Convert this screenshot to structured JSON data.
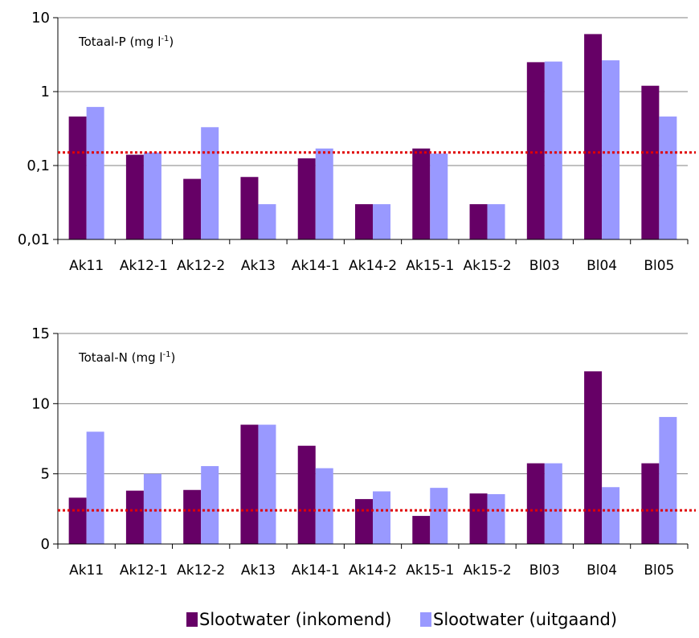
{
  "colors": {
    "inkomend": "#660066",
    "uitgaand": "#9999ff",
    "threshold": "#e00000",
    "grid": "#808080"
  },
  "legend": {
    "inkomend": "Slootwater (inkomend)",
    "uitgaand": "Slootwater (uitgaand)"
  },
  "chart_data": [
    {
      "type": "bar",
      "title": "Totaal-P (mg l",
      "title_sup": "-1",
      "title_close": ")",
      "scale": "log",
      "ylim": [
        0.01,
        10
      ],
      "yticks": [
        0.01,
        0.1,
        1,
        10
      ],
      "ytick_labels": [
        "0,01",
        "0,1",
        "1",
        "10"
      ],
      "grid": true,
      "threshold": 0.15,
      "categories": [
        "Ak11",
        "Ak12-1",
        "Ak12-2",
        "Ak13",
        "Ak14-1",
        "Ak14-2",
        "Ak15-1",
        "Ak15-2",
        "Bl03",
        "Bl04",
        "Bl05"
      ],
      "series": [
        {
          "name": "Slootwater (inkomend)",
          "values": [
            0.46,
            0.14,
            0.066,
            0.07,
            0.125,
            0.03,
            0.17,
            0.03,
            2.5,
            6.0,
            1.2
          ]
        },
        {
          "name": "Slootwater (uitgaand)",
          "values": [
            0.62,
            0.15,
            0.33,
            0.03,
            0.17,
            0.03,
            0.145,
            0.03,
            2.55,
            2.65,
            0.46
          ]
        }
      ]
    },
    {
      "type": "bar",
      "title": "Totaal-N (mg l",
      "title_sup": "-1",
      "title_close": ")",
      "scale": "linear",
      "ylim": [
        0,
        15
      ],
      "yticks": [
        0,
        5,
        10,
        15
      ],
      "ytick_labels": [
        "0",
        "5",
        "10",
        "15"
      ],
      "grid": true,
      "threshold": 2.4,
      "categories": [
        "Ak11",
        "Ak12-1",
        "Ak12-2",
        "Ak13",
        "Ak14-1",
        "Ak14-2",
        "Ak15-1",
        "Ak15-2",
        "Bl03",
        "Bl04",
        "Bl05"
      ],
      "series": [
        {
          "name": "Slootwater (inkomend)",
          "values": [
            3.3,
            3.8,
            3.85,
            8.5,
            7.0,
            3.2,
            2.0,
            3.6,
            5.75,
            12.3,
            5.75
          ]
        },
        {
          "name": "Slootwater (uitgaand)",
          "values": [
            8.0,
            5.0,
            5.55,
            8.5,
            5.4,
            3.75,
            4.0,
            3.55,
            5.75,
            4.05,
            9.05
          ]
        }
      ]
    }
  ]
}
